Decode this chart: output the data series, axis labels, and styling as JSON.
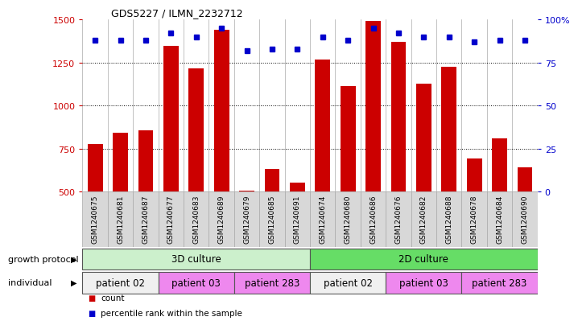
{
  "title": "GDS5227 / ILMN_2232712",
  "samples": [
    "GSM1240675",
    "GSM1240681",
    "GSM1240687",
    "GSM1240677",
    "GSM1240683",
    "GSM1240689",
    "GSM1240679",
    "GSM1240685",
    "GSM1240691",
    "GSM1240674",
    "GSM1240680",
    "GSM1240686",
    "GSM1240676",
    "GSM1240682",
    "GSM1240688",
    "GSM1240678",
    "GSM1240684",
    "GSM1240690"
  ],
  "counts": [
    780,
    845,
    855,
    1345,
    1215,
    1440,
    505,
    635,
    555,
    1270,
    1115,
    1490,
    1370,
    1130,
    1225,
    695,
    810,
    640
  ],
  "percentiles": [
    88,
    88,
    88,
    92,
    90,
    95,
    82,
    83,
    83,
    90,
    88,
    95,
    92,
    90,
    90,
    87,
    88,
    88
  ],
  "ylim_left": [
    500,
    1500
  ],
  "ylim_right": [
    0,
    100
  ],
  "yticks_left": [
    500,
    750,
    1000,
    1250,
    1500
  ],
  "yticks_right": [
    0,
    25,
    50,
    75,
    100
  ],
  "bar_color": "#cc0000",
  "dot_color": "#0000cc",
  "bar_width": 0.6,
  "growth_protocol_groups": [
    {
      "label": "3D culture",
      "start": 0,
      "end": 8,
      "color": "#ccf0cc"
    },
    {
      "label": "2D culture",
      "start": 9,
      "end": 17,
      "color": "#66dd66"
    }
  ],
  "individual_groups": [
    {
      "label": "patient 02",
      "start": 0,
      "end": 2,
      "color": "#f0f0f0"
    },
    {
      "label": "patient 03",
      "start": 3,
      "end": 5,
      "color": "#ee88ee"
    },
    {
      "label": "patient 283",
      "start": 6,
      "end": 8,
      "color": "#ee88ee"
    },
    {
      "label": "patient 02",
      "start": 9,
      "end": 11,
      "color": "#f0f0f0"
    },
    {
      "label": "patient 03",
      "start": 12,
      "end": 14,
      "color": "#ee88ee"
    },
    {
      "label": "patient 283",
      "start": 15,
      "end": 17,
      "color": "#ee88ee"
    }
  ],
  "growth_protocol_label": "growth protocol",
  "individual_label": "individual",
  "legend_count_label": "count",
  "legend_percentile_label": "percentile rank within the sample",
  "background_color": "#ffffff",
  "left_axis_color": "#cc0000",
  "right_axis_color": "#0000cc",
  "xtick_bg_color": "#d8d8d8",
  "xtick_border_color": "#aaaaaa"
}
